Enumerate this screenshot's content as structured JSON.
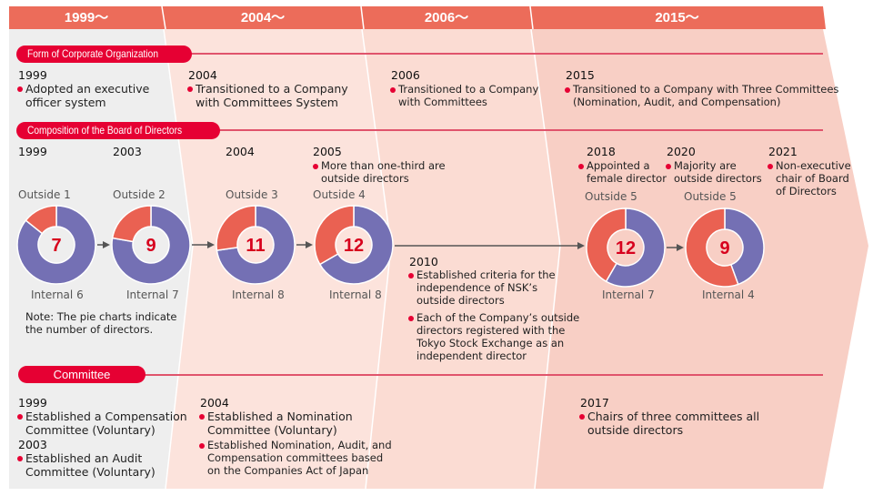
{
  "periods": [
    "1999～",
    "2004～",
    "2006～",
    "2015～"
  ],
  "colors": {
    "header": "#ec6c5a",
    "pill": "#e60033",
    "outside": "#ea6152",
    "internal": "#7470b4",
    "period1": "#eeeeee",
    "period2": "#fce3dc",
    "period3": "#fbdcd3",
    "period4": "#f8cfc5"
  },
  "sections": {
    "corporate": {
      "title": "Form of Corporate Organization",
      "entries": [
        {
          "year": "1999",
          "text": "Adopted an executive\nofficer system"
        },
        {
          "year": "2004",
          "text": "Transitioned to a Company\nwith Committees System"
        },
        {
          "year": "2006",
          "text": "Transitioned to a Company\nwith Committees"
        },
        {
          "year": "2015",
          "text": "Transitioned to a Company with Three Committees\n(Nomination, Audit, and Compensation)"
        }
      ]
    },
    "board": {
      "title": "Composition of the Board of Directors",
      "events": [
        {
          "year": "2005",
          "text": "More than one-third are\noutside directors"
        },
        {
          "year": "2018",
          "text": "Appointed a\nfemale director"
        },
        {
          "year": "2020",
          "text": "Majority are\noutside directors"
        },
        {
          "year": "2021",
          "text": "Non-executive\nchair of Board\nof Directors"
        }
      ],
      "charts": [
        {
          "year": "1999",
          "total": "7",
          "outside": 1,
          "internal": 6,
          "outside_label": "Outside 1",
          "internal_label": "Internal 6"
        },
        {
          "year": "2003",
          "total": "9",
          "outside": 2,
          "internal": 7,
          "outside_label": "Outside 2",
          "internal_label": "Internal 7"
        },
        {
          "year": "2004",
          "total": "11",
          "outside": 3,
          "internal": 8,
          "outside_label": "Outside 3",
          "internal_label": "Internal 8"
        },
        {
          "year": "",
          "total": "12",
          "outside": 4,
          "internal": 8,
          "outside_label": "Outside 4",
          "internal_label": "Internal 8"
        },
        {
          "year": "",
          "total": "12",
          "outside": 5,
          "internal": 7,
          "outside_label": "Outside 5",
          "internal_label": "Internal 7"
        },
        {
          "year": "",
          "total": "9",
          "outside": 5,
          "internal": 4,
          "outside_label": "Outside 5",
          "internal_label": "Internal 4"
        }
      ],
      "note": "Note: The pie charts indicate\nthe number of directors.",
      "y2010": {
        "year": "2010",
        "items": [
          "Established criteria for the\nindependence of NSK’s\noutside directors",
          "Each of the Company’s outside\ndirectors registered with the\nTokyo Stock Exchange as an\nindependent director"
        ]
      }
    },
    "committee": {
      "title": "Committee",
      "col1": [
        {
          "year": "1999",
          "text": "Established a Compensation\nCommittee (Voluntary)"
        },
        {
          "year": "2003",
          "text": "Established an Audit\nCommittee (Voluntary)"
        }
      ],
      "col2": {
        "year": "2004",
        "items": [
          "Established a Nomination\nCommittee (Voluntary)",
          "Established Nomination, Audit, and\nCompensation committees based\non the Companies Act of Japan"
        ]
      },
      "col4": {
        "year": "2017",
        "text": "Chairs of three committees all\noutside directors"
      }
    }
  }
}
